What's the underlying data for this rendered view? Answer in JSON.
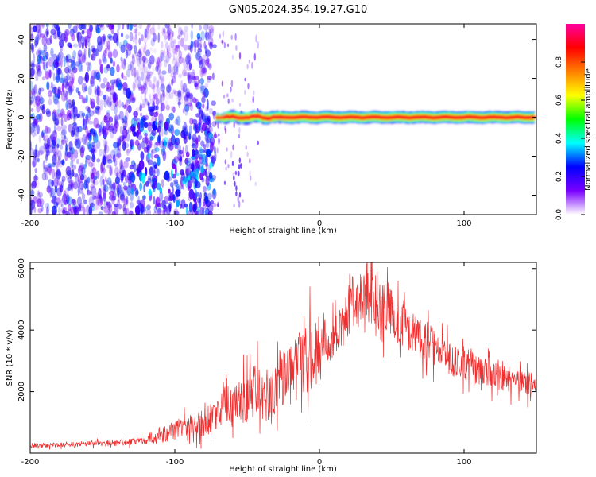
{
  "figure": {
    "title": "GN05.2024.354.19.27.G10"
  },
  "chart_data": [
    {
      "type": "heatmap",
      "title": "GN05.2024.354.19.27.G10",
      "xlabel": "Height of straight line (km)",
      "ylabel": "Frequency (Hz)",
      "xlim": [
        -200,
        150
      ],
      "ylim": [
        -50,
        48
      ],
      "xticks": [
        -200,
        -100,
        0,
        100
      ],
      "yticks": [
        -40,
        -20,
        0,
        20,
        40
      ],
      "colorbar": {
        "label": "Normalized spectral amplitude",
        "range": [
          0,
          1
        ],
        "ticks": [
          "0.0",
          "0.2",
          "0.4",
          "0.6",
          "0.8"
        ],
        "tick_values": [
          0.0,
          0.2,
          0.4,
          0.6,
          0.8
        ],
        "colormap": [
          "#ffffff",
          "#7a00ff",
          "#0000ff",
          "#00ffff",
          "#00ff00",
          "#ffff00",
          "#ff7f00",
          "#ff0000",
          "#ff00a0"
        ]
      },
      "noise_region": {
        "x": [
          -200,
          -72
        ],
        "frequency": [
          -50,
          48
        ],
        "amplitude": [
          0.0,
          0.3
        ]
      },
      "carrier_track": {
        "x": [
          -72,
          150
        ],
        "frequency": 0,
        "peak_amplitude": 0.9
      },
      "grid": false
    },
    {
      "type": "line",
      "xlabel": "Height of straight line (km)",
      "ylabel": "SNR (10 * v/v)",
      "xlim": [
        -200,
        150
      ],
      "ylim": [
        0,
        6200
      ],
      "xticks": [
        -200,
        -100,
        0,
        100
      ],
      "yticks": [
        2000,
        4000,
        6000
      ],
      "color": "#f03030",
      "grid": false,
      "series": [
        {
          "x": [
            -200,
            -180,
            -160,
            -140,
            -120,
            -110,
            -100,
            -90,
            -80,
            -70,
            -65,
            -60,
            -55,
            -50,
            -45,
            -40,
            -35,
            -30,
            -25,
            -20,
            -15,
            -10,
            -5,
            0,
            5,
            10,
            15,
            20,
            25,
            30,
            35,
            40,
            50,
            60,
            70,
            80,
            90,
            100,
            110,
            120,
            130,
            140,
            150
          ],
          "values": [
            250,
            270,
            300,
            330,
            400,
            550,
            750,
            850,
            1000,
            1300,
            1900,
            1500,
            1800,
            1700,
            2000,
            1900,
            1600,
            2300,
            2500,
            2600,
            2800,
            2900,
            3100,
            3200,
            3500,
            3800,
            4100,
            4500,
            4900,
            5100,
            5100,
            4900,
            4500,
            4000,
            3700,
            3400,
            3100,
            2900,
            2700,
            2500,
            2400,
            2300,
            2250
          ]
        }
      ]
    }
  ]
}
